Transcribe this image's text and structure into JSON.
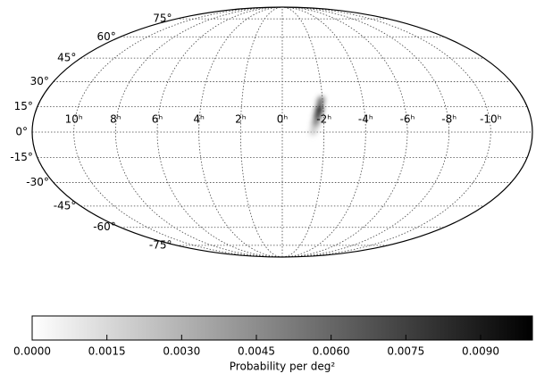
{
  "chart_data": {
    "type": "mollweide",
    "xticks": [
      {
        "value": 10,
        "label": "10ʰ"
      },
      {
        "value": 8,
        "label": "8ʰ"
      },
      {
        "value": 6,
        "label": "6ʰ"
      },
      {
        "value": 4,
        "label": "4ʰ"
      },
      {
        "value": 2,
        "label": "2ʰ"
      },
      {
        "value": 0,
        "label": "0ʰ"
      },
      {
        "value": -2,
        "label": "-2ʰ"
      },
      {
        "value": -4,
        "label": "-4ʰ"
      },
      {
        "value": -6,
        "label": "-6ʰ"
      },
      {
        "value": -8,
        "label": "-8ʰ"
      },
      {
        "value": -10,
        "label": "-10ʰ"
      }
    ],
    "yticks": [
      {
        "value": 75,
        "label": "75°"
      },
      {
        "value": 60,
        "label": "60°"
      },
      {
        "value": 45,
        "label": "45°"
      },
      {
        "value": 30,
        "label": "30°"
      },
      {
        "value": 15,
        "label": "15°"
      },
      {
        "value": 0,
        "label": "0°"
      },
      {
        "value": -15,
        "label": "-15°"
      },
      {
        "value": -30,
        "label": "-30°"
      },
      {
        "value": -45,
        "label": "-45°"
      },
      {
        "value": -60,
        "label": "-60°"
      },
      {
        "value": -75,
        "label": "-75°"
      }
    ],
    "points": {
      "x": [
        -1.9,
        -1.8,
        -1.7,
        -1.6,
        -1.5
      ],
      "y": [
        18,
        13,
        9,
        5,
        1
      ],
      "values": [
        0.006,
        0.0095,
        0.008,
        0.005,
        0.002
      ]
    },
    "colorbar": {
      "label": "Probability per deg²",
      "lim": [
        0,
        0.01004
      ],
      "ticks": [
        {
          "value": 0,
          "label": "0.0000"
        },
        0.0015,
        {
          "value": 0.003,
          "label": "0.0030"
        },
        0.0045,
        {
          "value": 0.006,
          "label": "0.0060"
        },
        0.0075,
        {
          "value": 0.009,
          "label": "0.0090"
        }
      ]
    }
  }
}
